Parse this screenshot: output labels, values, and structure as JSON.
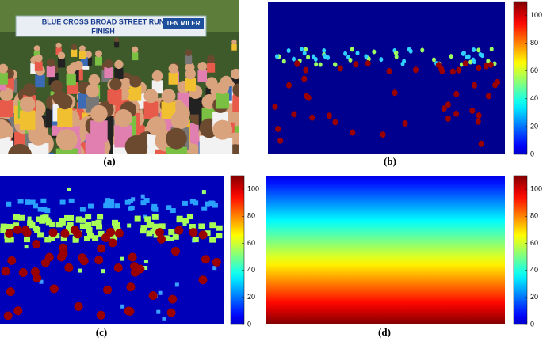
{
  "photo": {
    "banner": "BLUE CROSS BROAD STREET RUN",
    "finish": "FINISH",
    "sign": "TEN MILER"
  },
  "panels": [
    {
      "label": "(a)"
    },
    {
      "label": "(b)"
    },
    {
      "label": "(c)"
    },
    {
      "label": "(d)"
    }
  ],
  "colorbar": {
    "lim": [
      0,
      110
    ],
    "ticks": [
      0,
      20,
      40,
      60,
      80,
      100
    ]
  }
}
